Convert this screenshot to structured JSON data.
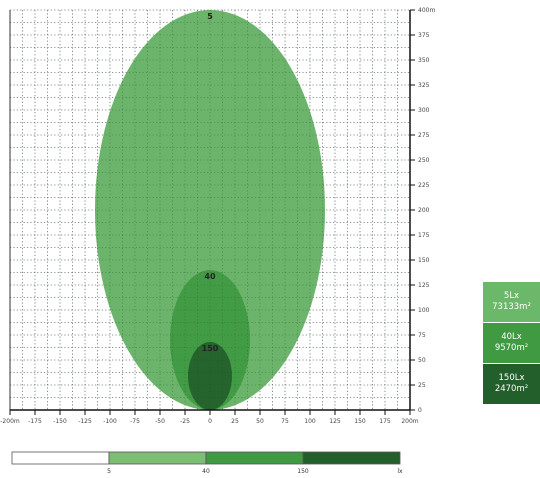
{
  "chart_data": {
    "type": "contour",
    "xlim": [
      -200,
      200
    ],
    "ylim": [
      0,
      400
    ],
    "x_ticks": [
      -200,
      -175,
      -150,
      -125,
      -100,
      -75,
      -50,
      -25,
      0,
      25,
      50,
      75,
      100,
      125,
      150,
      175,
      200
    ],
    "x_tick_labels": [
      "-200m",
      "-175",
      "-150",
      "-125",
      "-100",
      "-75",
      "-50",
      "-25",
      "0",
      "25",
      "50",
      "75",
      "100",
      "125",
      "150",
      "175",
      "200m"
    ],
    "y_ticks": [
      0,
      25,
      50,
      75,
      100,
      125,
      150,
      175,
      200,
      225,
      250,
      275,
      300,
      325,
      350,
      375,
      400
    ],
    "y_tick_labels": [
      "0",
      "25",
      "50",
      "75",
      "100",
      "125",
      "150",
      "175",
      "200",
      "225",
      "250",
      "275",
      "300",
      "325",
      "350",
      "375",
      "400m"
    ],
    "grid": true,
    "contours": [
      {
        "level_label": "5",
        "value_lux": 5,
        "x_min": -115,
        "x_max": 115,
        "y_min": 0,
        "y_max": 400,
        "color": "#5fae5f"
      },
      {
        "level_label": "40",
        "value_lux": 40,
        "x_min": -40,
        "x_max": 40,
        "y_min": 0,
        "y_max": 140,
        "color": "#3f9a42"
      },
      {
        "level_label": "150",
        "value_lux": 150,
        "x_min": -22,
        "x_max": 22,
        "y_min": 0,
        "y_max": 68,
        "color": "#235f2b"
      }
    ],
    "legend": [
      {
        "lux": "5Lx",
        "area": "73133m²",
        "color": "#5fae5f"
      },
      {
        "lux": "40Lx",
        "area": "9570m²",
        "color": "#3f9a42"
      },
      {
        "lux": "150Lx",
        "area": "2470m²",
        "color": "#235f2b"
      }
    ],
    "color_bar": {
      "segments": [
        {
          "color": "#ffffff"
        },
        {
          "color": "#7cbf74"
        },
        {
          "color": "#3f9a42"
        },
        {
          "color": "#235f2b"
        }
      ],
      "labels": [
        "5",
        "40",
        "150",
        "lx"
      ]
    }
  }
}
